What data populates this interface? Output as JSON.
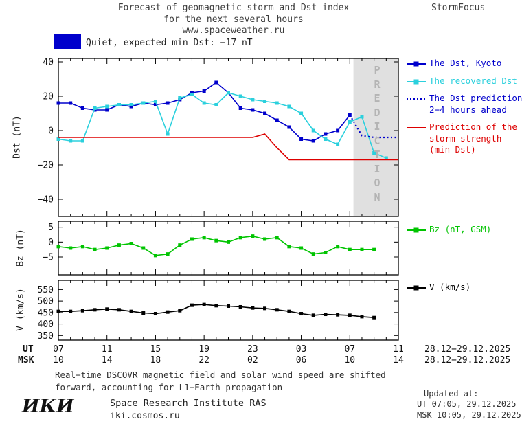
{
  "header": {
    "title_line1": "Forecast of geomagnetic storm and Dst index",
    "title_line2": "for the next several hours",
    "title_line3": "www.spaceweather.ru",
    "brand": "StormFocus"
  },
  "status": {
    "label": "Quiet, expected min Dst: −17 nT",
    "swatch_color": "#0000cc"
  },
  "prediction_zone": {
    "label": "PREDICTION",
    "start_hour_ut": 31.3,
    "fill_color": "#e0e0e0",
    "text_color": "#b4b4b4"
  },
  "chart_data": [
    {
      "type": "line",
      "panel": "dst",
      "ylabel": "Dst (nT)",
      "ylim": [
        -50,
        42
      ],
      "yticks": [
        40,
        20,
        0,
        -20,
        -40
      ],
      "x_hours_ut": [
        7,
        8,
        9,
        10,
        11,
        12,
        13,
        14,
        15,
        16,
        17,
        18,
        19,
        20,
        21,
        22,
        23,
        24,
        25,
        26,
        27,
        28,
        29,
        30,
        31,
        32,
        33,
        34,
        35
      ],
      "series": [
        {
          "name": "The Dst, Kyoto",
          "color": "#0000cc",
          "marker": "square",
          "style": "solid",
          "values": [
            16,
            16,
            13,
            12,
            12,
            15,
            14,
            16,
            15,
            16,
            18,
            22,
            23,
            28,
            22,
            13,
            12,
            10,
            6,
            2,
            -5,
            -6,
            -2,
            0,
            9,
            null,
            null,
            null,
            null
          ]
        },
        {
          "name": "The recovered Dst",
          "color": "#2bd0dd",
          "marker": "square",
          "style": "solid",
          "values": [
            -5,
            -6,
            -6,
            13,
            14,
            15,
            15,
            16,
            17,
            -2,
            19,
            21,
            16,
            15,
            22,
            20,
            18,
            17,
            16,
            14,
            10,
            0,
            -5,
            -8,
            5,
            8,
            -13,
            -16,
            null
          ]
        },
        {
          "name": "The Dst prediction 2−4 hours ahead",
          "color": "#0000cc",
          "marker": "none",
          "style": "dotted",
          "values": [
            null,
            null,
            null,
            null,
            null,
            null,
            null,
            null,
            null,
            null,
            null,
            null,
            null,
            null,
            null,
            null,
            null,
            null,
            null,
            null,
            null,
            null,
            null,
            null,
            9,
            -3,
            -4,
            -4,
            -4
          ]
        },
        {
          "name": "Prediction of the storm strength (min Dst)",
          "color": "#dd0000",
          "marker": "none",
          "style": "solid",
          "values": [
            -4,
            -4,
            -4,
            -4,
            -4,
            -4,
            -4,
            -4,
            -4,
            -4,
            -4,
            -4,
            -4,
            -4,
            -4,
            -4,
            -4,
            -2,
            -10,
            -17,
            -17,
            -17,
            -17,
            -17,
            -17,
            -17,
            -17,
            -17,
            -17
          ]
        }
      ]
    },
    {
      "type": "line",
      "panel": "bz",
      "ylabel": "Bz (nT)",
      "ylim": [
        -11,
        7
      ],
      "yticks": [
        5,
        0,
        -5
      ],
      "x_hours_ut": [
        7,
        8,
        9,
        10,
        11,
        12,
        13,
        14,
        15,
        16,
        17,
        18,
        19,
        20,
        21,
        22,
        23,
        24,
        25,
        26,
        27,
        28,
        29,
        30,
        31,
        32,
        33,
        34,
        35
      ],
      "series": [
        {
          "name": "Bz (nT, GSM)",
          "color": "#00c400",
          "marker": "square",
          "style": "solid",
          "values": [
            -1.5,
            -2,
            -1.5,
            -2.5,
            -2,
            -1,
            -0.5,
            -2,
            -4.5,
            -4,
            -1,
            1,
            1.5,
            0.5,
            0,
            1.5,
            2,
            1,
            1.5,
            -1.5,
            -2,
            -4,
            -3.5,
            -1.5,
            -2.5,
            -2.5,
            -2.5,
            null,
            null
          ]
        }
      ]
    },
    {
      "type": "line",
      "panel": "v",
      "ylabel": "V (km/s)",
      "ylim": [
        330,
        590
      ],
      "yticks": [
        350,
        400,
        450,
        500,
        550
      ],
      "x_hours_ut": [
        7,
        8,
        9,
        10,
        11,
        12,
        13,
        14,
        15,
        16,
        17,
        18,
        19,
        20,
        21,
        22,
        23,
        24,
        25,
        26,
        27,
        28,
        29,
        30,
        31,
        32,
        33,
        34,
        35
      ],
      "series": [
        {
          "name": "V (km/s)",
          "color": "#000000",
          "marker": "square",
          "style": "solid",
          "values": [
            455,
            455,
            458,
            462,
            465,
            462,
            455,
            448,
            445,
            452,
            458,
            482,
            485,
            480,
            478,
            475,
            470,
            468,
            462,
            455,
            445,
            438,
            442,
            440,
            438,
            432,
            428,
            null,
            null
          ]
        }
      ]
    }
  ],
  "legend": {
    "dst": [
      {
        "label_lines": [
          "The Dst, Kyoto"
        ],
        "color": "#0000cc",
        "key": "line-square",
        "icon": "dst-kyoto-key-icon"
      },
      {
        "label_lines": [
          "The recovered Dst"
        ],
        "color": "#2bd0dd",
        "key": "line-square",
        "icon": "recovered-dst-key-icon"
      },
      {
        "label_lines": [
          "The Dst prediction",
          "2−4 hours ahead"
        ],
        "color": "#0000cc",
        "key": "dotted-line",
        "icon": "dst-prediction-key-icon"
      },
      {
        "label_lines": [
          "Prediction of the",
          "storm strength",
          "(min Dst)"
        ],
        "color": "#dd0000",
        "key": "line",
        "icon": "storm-strength-key-icon"
      }
    ],
    "bz": [
      {
        "label_lines": [
          "Bz (nT, GSM)"
        ],
        "color": "#00c400",
        "key": "line-square",
        "icon": "bz-key-icon"
      }
    ],
    "v": [
      {
        "label_lines": [
          "V (km/s)"
        ],
        "color": "#000000",
        "key": "line-square",
        "icon": "v-key-icon"
      }
    ]
  },
  "xaxis": {
    "ut_label": "UT",
    "msk_label": "MSK",
    "ut_ticks": [
      "07",
      "11",
      "15",
      "19",
      "23",
      "03",
      "07",
      "11"
    ],
    "msk_ticks": [
      "10",
      "14",
      "18",
      "22",
      "02",
      "06",
      "10",
      "14"
    ],
    "ut_date": "28.12−29.12.2025",
    "msk_date": "28.12−29.12.2025"
  },
  "footnote": {
    "line1": "Real−time DSCOVR magnetic field and solar wind speed are shifted",
    "line2": "forward, accounting for L1−Earth propagation"
  },
  "footer": {
    "logo": "ИКИ",
    "institute": "Space Research Institute RAS",
    "site": "iki.cosmos.ru",
    "updated_label": "Updated at:",
    "updated_ut": "UT  07:05, 29.12.2025",
    "updated_msk": "MSK 10:05, 29.12.2025"
  }
}
